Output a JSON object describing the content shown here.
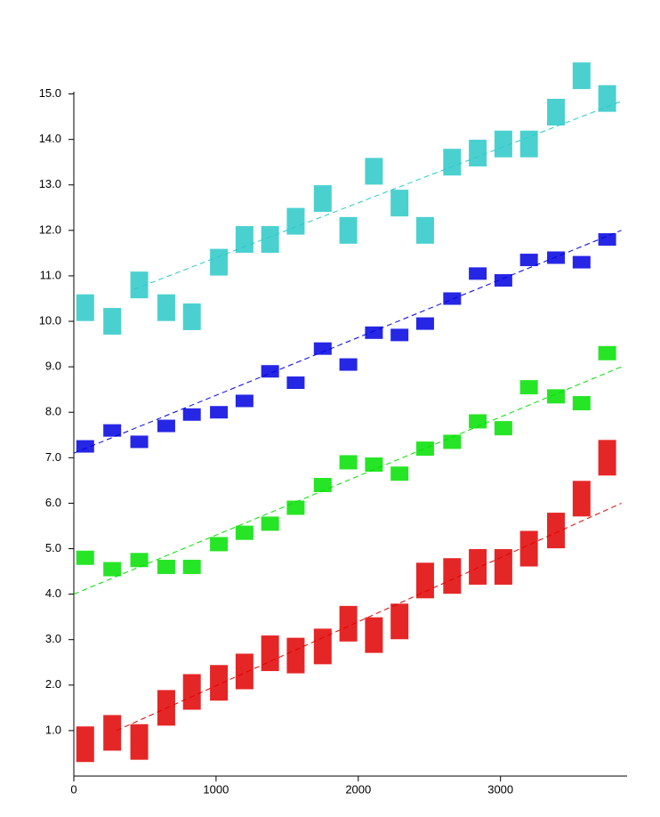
{
  "chart_data": {
    "type": "scatter",
    "xlim": [
      0,
      3890
    ],
    "ylim": [
      0,
      15.05
    ],
    "xticks": [
      0,
      1000,
      2000,
      3000
    ],
    "yticks": [
      {
        "value": 1,
        "label": "1.0"
      },
      {
        "value": 2,
        "label": "2.0"
      },
      {
        "value": 3,
        "label": "3.0"
      },
      {
        "value": 4,
        "label": "4.0"
      },
      {
        "value": 5,
        "label": "5.0"
      },
      {
        "value": 6,
        "label": "6.0"
      },
      {
        "value": 7,
        "label": "7.0"
      },
      {
        "value": 8,
        "label": "8.0"
      },
      {
        "value": 9,
        "label": "9.0"
      },
      {
        "value": 10,
        "label": "10.0"
      },
      {
        "value": 11,
        "label": "11.0"
      },
      {
        "value": 12,
        "label": "12.0"
      },
      {
        "value": 13,
        "label": "13.0"
      },
      {
        "value": 14,
        "label": "14.0"
      },
      {
        "value": 15,
        "label": "15.0"
      }
    ],
    "series": [
      {
        "color": "#2cc8c8",
        "x": [
          80,
          270,
          460,
          650,
          830,
          1020,
          1200,
          1380,
          1560,
          1750,
          1930,
          2110,
          2290,
          2470,
          2660,
          2840,
          3020,
          3200,
          3390,
          3570,
          3750
        ],
        "values": [
          10.3,
          10.0,
          10.8,
          10.3,
          10.1,
          11.3,
          11.8,
          11.8,
          12.2,
          12.7,
          12.0,
          13.3,
          12.6,
          12.0,
          13.5,
          13.7,
          13.9,
          13.9,
          14.6,
          15.4,
          14.9
        ],
        "trend": {
          "x": [
            420,
            3860
          ],
          "values": [
            10.7,
            14.85
          ]
        }
      },
      {
        "color": "#0000e0",
        "x": [
          80,
          270,
          460,
          650,
          830,
          1020,
          1200,
          1380,
          1560,
          1750,
          1930,
          2110,
          2290,
          2470,
          2660,
          2840,
          3020,
          3200,
          3390,
          3570,
          3750
        ],
        "values": [
          7.25,
          7.6,
          7.35,
          7.7,
          7.95,
          8.0,
          8.25,
          8.9,
          8.65,
          9.4,
          9.05,
          9.75,
          9.7,
          9.95,
          10.5,
          11.05,
          10.9,
          11.35,
          11.4,
          11.3,
          11.8
        ],
        "trend": {
          "x": [
            0,
            3850
          ],
          "values": [
            7.1,
            12.0
          ]
        }
      },
      {
        "color": "#00e000",
        "x": [
          80,
          270,
          460,
          650,
          830,
          1020,
          1200,
          1380,
          1560,
          1750,
          1930,
          2110,
          2290,
          2470,
          2660,
          2840,
          3020,
          3200,
          3390,
          3570,
          3750
        ],
        "values": [
          4.8,
          4.55,
          4.75,
          4.6,
          4.6,
          5.1,
          5.35,
          5.55,
          5.9,
          6.4,
          6.9,
          6.85,
          6.65,
          7.2,
          7.35,
          7.8,
          7.65,
          8.55,
          8.35,
          8.2,
          9.3
        ],
        "trend": {
          "x": [
            0,
            3850
          ],
          "values": [
            4.0,
            9.0
          ]
        }
      },
      {
        "color": "#e00000",
        "x": [
          80,
          270,
          460,
          650,
          830,
          1020,
          1200,
          1380,
          1560,
          1750,
          1930,
          2110,
          2290,
          2470,
          2660,
          2840,
          3020,
          3200,
          3390,
          3570,
          3750
        ],
        "values": [
          0.7,
          0.95,
          0.75,
          1.5,
          1.85,
          2.05,
          2.3,
          2.7,
          2.65,
          2.85,
          3.35,
          3.1,
          3.4,
          4.3,
          4.4,
          4.6,
          4.6,
          5.0,
          5.4,
          6.1,
          7.0
        ],
        "trend": {
          "x": [
            300,
            3850
          ],
          "values": [
            1.0,
            6.0
          ]
        }
      }
    ]
  }
}
